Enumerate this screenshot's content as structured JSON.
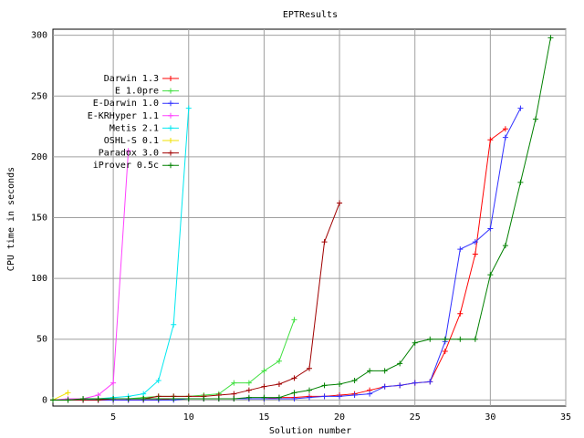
{
  "chart_data": {
    "type": "line",
    "title": "EPTResults",
    "x_label": "Solution number",
    "y_label": "CPU time in seconds",
    "x": [
      1,
      2,
      3,
      4,
      5,
      6,
      7,
      8,
      9,
      10,
      11,
      12,
      13,
      14,
      15,
      16,
      17,
      18,
      19,
      20,
      21,
      22,
      23,
      24,
      25,
      26,
      27,
      28,
      29,
      30,
      31,
      32,
      33,
      34
    ],
    "xlim": [
      1,
      35
    ],
    "xticks": [
      5,
      10,
      15,
      20,
      25,
      30,
      35
    ],
    "ylim": [
      -5,
      305
    ],
    "yticks": [
      0,
      50,
      100,
      150,
      200,
      250,
      300
    ],
    "grid": true,
    "legend": "upper-left",
    "series": [
      {
        "name": "Darwin 1.3",
        "color": "#ff0000",
        "values": [
          0,
          0,
          0,
          0,
          0,
          0,
          0,
          0,
          1,
          1,
          1,
          1,
          1,
          1,
          1,
          2,
          2,
          3,
          3,
          4,
          5,
          8,
          11,
          12,
          14,
          15,
          40,
          71,
          120,
          214,
          223,
          null,
          null,
          null
        ]
      },
      {
        "name": "E 1.0pre",
        "color": "#40e040",
        "values": [
          0,
          0,
          0,
          0,
          1,
          1,
          2,
          3,
          3,
          3,
          4,
          5,
          14,
          14,
          24,
          32,
          66,
          null,
          null,
          null,
          null,
          null,
          null,
          null,
          null,
          null,
          null,
          null,
          null,
          null,
          null,
          null,
          null,
          null
        ]
      },
      {
        "name": "E-Darwin 1.0",
        "color": "#3030ff",
        "values": [
          0,
          0,
          0,
          0,
          0,
          0,
          0,
          0,
          0,
          1,
          1,
          1,
          1,
          1,
          1,
          1,
          1,
          2,
          3,
          3,
          4,
          5,
          11,
          12,
          14,
          15,
          48,
          124,
          130,
          141,
          216,
          240,
          null,
          null
        ]
      },
      {
        "name": "E-KRHyper 1.1",
        "color": "#ff40ff",
        "values": [
          0,
          1,
          1,
          4,
          14,
          205,
          null,
          null,
          null,
          null,
          null,
          null,
          null,
          null,
          null,
          null,
          null,
          null,
          null,
          null,
          null,
          null,
          null,
          null,
          null,
          null,
          null,
          null,
          null,
          null,
          null,
          null,
          null,
          null
        ]
      },
      {
        "name": "Metis 2.1",
        "color": "#00e8f0",
        "values": [
          0,
          0,
          0,
          1,
          2,
          3,
          5,
          16,
          62,
          240,
          null,
          null,
          null,
          null,
          null,
          null,
          null,
          null,
          null,
          null,
          null,
          null,
          null,
          null,
          null,
          null,
          null,
          null,
          null,
          null,
          null,
          null,
          null,
          null
        ]
      },
      {
        "name": "OSHL-S 0.1",
        "color": "#f0e000",
        "values": [
          0,
          6,
          null,
          null,
          null,
          null,
          null,
          null,
          null,
          null,
          null,
          null,
          null,
          null,
          null,
          null,
          null,
          null,
          null,
          null,
          null,
          null,
          null,
          null,
          null,
          null,
          null,
          null,
          null,
          null,
          null,
          null,
          null,
          null
        ]
      },
      {
        "name": "Paradox 3.0",
        "color": "#a00000",
        "values": [
          0,
          0,
          0,
          0,
          1,
          1,
          1,
          3,
          3,
          3,
          3,
          4,
          5,
          8,
          11,
          13,
          18,
          26,
          130,
          162,
          null,
          null,
          null,
          null,
          null,
          null,
          null,
          null,
          null,
          null,
          null,
          null,
          null,
          null
        ]
      },
      {
        "name": "iProver 0.5c",
        "color": "#008000",
        "values": [
          0,
          0,
          1,
          1,
          1,
          1,
          1,
          1,
          1,
          1,
          1,
          1,
          1,
          2,
          2,
          2,
          6,
          8,
          12,
          13,
          16,
          24,
          24,
          30,
          47,
          50,
          50,
          50,
          50,
          103,
          127,
          179,
          231,
          298
        ]
      }
    ]
  }
}
